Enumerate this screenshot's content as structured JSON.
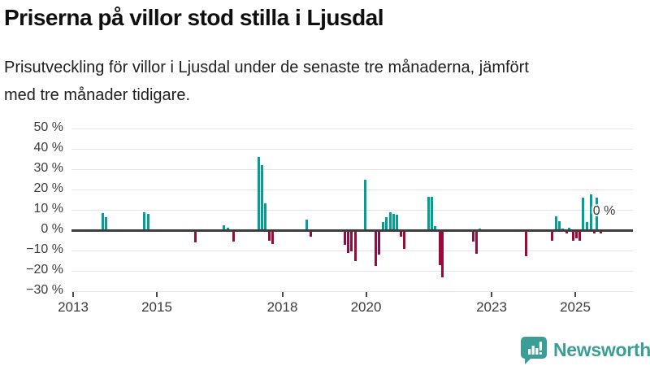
{
  "header": {
    "title": "Priserna på villor stod stilla i Ljusdal",
    "subtitle_lines": [
      "Prisutveckling för villor i Ljusdal under de senaste tre månaderna, jämfört",
      "med tre månader tidigare."
    ]
  },
  "chart_data": {
    "type": "bar",
    "title": "Priserna på villor stod stilla i Ljusdal",
    "subtitle": "Prisutveckling för villor i Ljusdal under de senaste tre månaderna, jämfört med tre månader tidigare.",
    "xlabel": "",
    "ylabel": "",
    "unit": "%",
    "grid": true,
    "legend": false,
    "x_axis": {
      "range": [
        2012.96,
        2026.38
      ],
      "ticks": [
        {
          "label": "2013",
          "year": 2013
        },
        {
          "label": "2015",
          "year": 2015
        },
        {
          "label": "2018",
          "year": 2018
        },
        {
          "label": "2020",
          "year": 2020
        },
        {
          "label": "2023",
          "year": 2023
        },
        {
          "label": "2025",
          "year": 2025
        }
      ]
    },
    "y_axis": {
      "range": [
        -30,
        50
      ],
      "ticks": [
        {
          "label": "50 %",
          "value": 50
        },
        {
          "label": "40 %",
          "value": 40
        },
        {
          "label": "30 %",
          "value": 30
        },
        {
          "label": "20 %",
          "value": 20
        },
        {
          "label": "10 %",
          "value": 10
        },
        {
          "label": "0 %",
          "value": 0
        },
        {
          "label": "−10 %",
          "value": -10
        },
        {
          "label": "−20 %",
          "value": -20
        },
        {
          "label": "−30 %",
          "value": -30
        }
      ]
    },
    "colors": {
      "positive": "#00a096",
      "negative": "#9b0a3c",
      "zero_line": "#3d3d3d",
      "gridline": "#e4e4e4"
    },
    "bars": [
      [
        2013.7,
        8.4
      ],
      [
        2013.79,
        6.7
      ],
      [
        2014.7,
        9.0
      ],
      [
        2014.79,
        8.3
      ],
      [
        2015.93,
        -6.0
      ],
      [
        2016.61,
        2.4
      ],
      [
        2016.69,
        1.5
      ],
      [
        2016.83,
        -5.3
      ],
      [
        2017.44,
        36.0
      ],
      [
        2017.52,
        32.0
      ],
      [
        2017.6,
        13.3
      ],
      [
        2017.69,
        -4.9
      ],
      [
        2017.77,
        -6.5
      ],
      [
        2018.58,
        5.3
      ],
      [
        2018.68,
        -3.2
      ],
      [
        2019.49,
        -7.2
      ],
      [
        2019.57,
        -10.9
      ],
      [
        2019.66,
        -10.3
      ],
      [
        2019.74,
        -14.9
      ],
      [
        2019.99,
        24.8
      ],
      [
        2020.23,
        -17.3
      ],
      [
        2020.31,
        -12.0
      ],
      [
        2020.41,
        4.0
      ],
      [
        2020.49,
        6.4
      ],
      [
        2020.58,
        8.8
      ],
      [
        2020.66,
        8.3
      ],
      [
        2020.74,
        7.7
      ],
      [
        2020.84,
        -3.2
      ],
      [
        2020.92,
        -8.9
      ],
      [
        2021.49,
        16.7
      ],
      [
        2021.58,
        16.7
      ],
      [
        2021.66,
        2.1
      ],
      [
        2021.76,
        -17.0
      ],
      [
        2021.83,
        -23.2
      ],
      [
        2022.56,
        -5.6
      ],
      [
        2022.65,
        -11.6
      ],
      [
        2022.72,
        0.8
      ],
      [
        2023.82,
        -12.7
      ],
      [
        2024.45,
        -4.9
      ],
      [
        2024.54,
        6.9
      ],
      [
        2024.62,
        4.5
      ],
      [
        2024.7,
        0.9
      ],
      [
        2024.79,
        -1.6
      ],
      [
        2024.86,
        1.2
      ],
      [
        2024.95,
        -5.0
      ],
      [
        2025.03,
        -3.7
      ],
      [
        2025.11,
        -5.0
      ],
      [
        2025.19,
        16.3
      ],
      [
        2025.28,
        4.0
      ],
      [
        2025.37,
        17.6
      ],
      [
        2025.45,
        -1.6
      ],
      [
        2025.51,
        16.0
      ],
      [
        2025.61,
        -1.6
      ],
      [
        2025.69,
        0.0
      ]
    ],
    "annotation": {
      "text": "0 %",
      "x": 2025.69,
      "value": 9.3
    }
  },
  "footer": {
    "brand": "Newsworthy",
    "logo_icon": "newsworthy-bar-chart-bubble-icon",
    "brand_color": "#3b9e96"
  }
}
